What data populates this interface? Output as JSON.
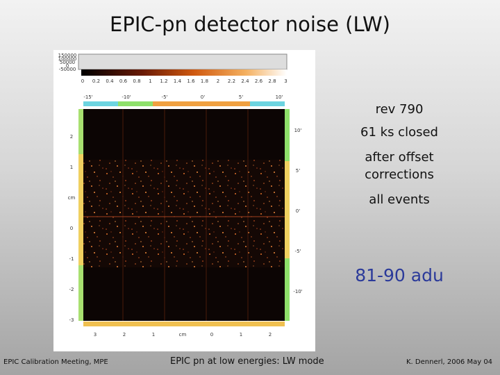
{
  "header": {
    "title": "EPIC-pn detector noise  (LW)"
  },
  "figure": {
    "colorbar_left_labels": [
      "150000",
      "100000",
      "50000",
      "0",
      "-50000"
    ],
    "colorbar_ticks": [
      "0",
      "0.2",
      "0.4",
      "0.6",
      "0.8",
      "1",
      "1.2",
      "1.4",
      "1.6",
      "1.8",
      "2",
      "2.2",
      "2.4",
      "2.6",
      "2.8",
      "3"
    ],
    "top_ticks": [
      "-15'",
      "-10'",
      "-5'",
      "0'",
      "5'",
      "10'"
    ],
    "right_ticks": [
      "10'",
      "5'",
      "0'",
      "-5'",
      "-10'"
    ],
    "left_ticks": [
      "2",
      "1",
      "cm",
      "0",
      "-1",
      "-2",
      "-3"
    ],
    "bottom_ticks": [
      "3",
      "2",
      "1",
      "cm",
      "0",
      "1",
      "2"
    ]
  },
  "notes": [
    "rev 790",
    "61 ks closed",
    "after offset corrections",
    "all events"
  ],
  "highlight": "81-90 adu",
  "footer": {
    "left": "EPIC Calibration Meeting, MPE",
    "center": "EPIC pn at low energies: LW mode",
    "right": "K. Dennerl, 2006 May 04"
  }
}
